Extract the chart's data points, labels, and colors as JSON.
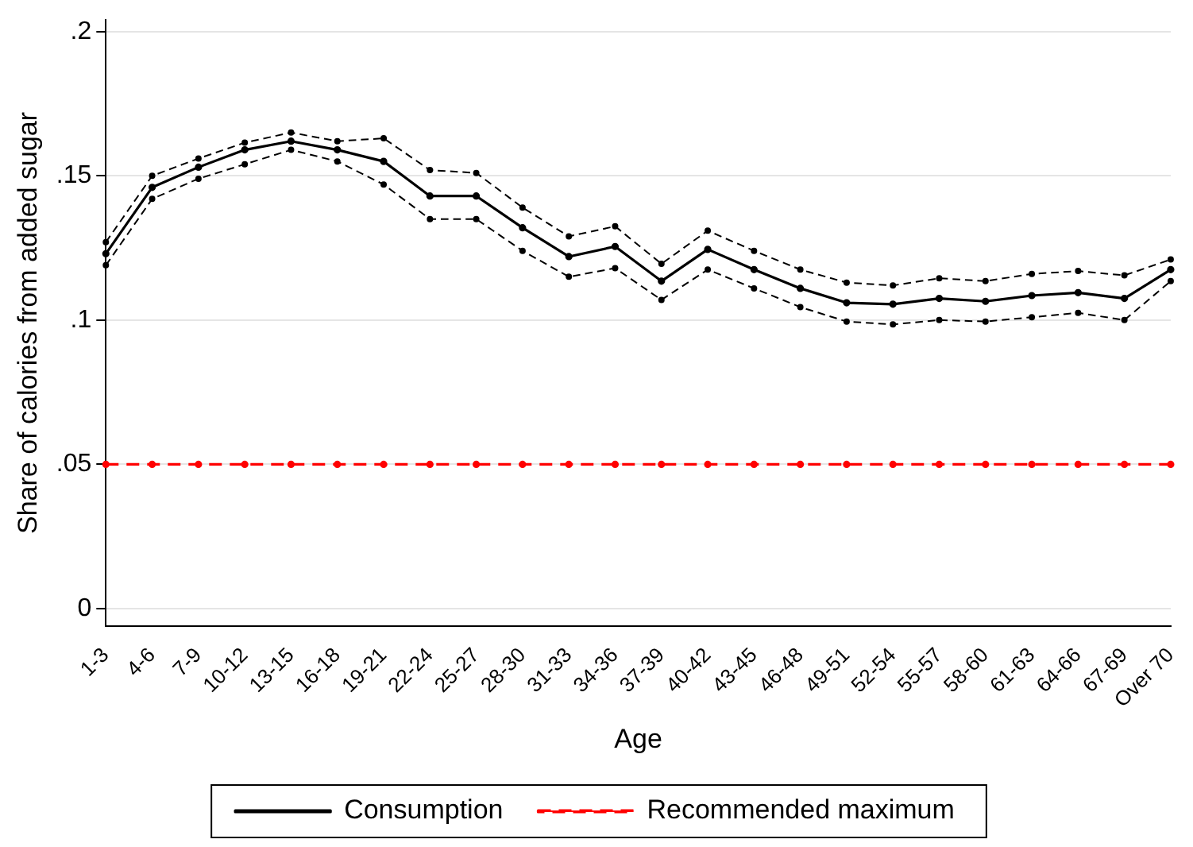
{
  "chart_data": {
    "type": "line",
    "xlabel": "Age",
    "ylabel": "Share of calories from added sugar",
    "categories": [
      "1-3",
      "4-6",
      "7-9",
      "10-12",
      "13-15",
      "16-18",
      "19-21",
      "22-24",
      "25-27",
      "28-30",
      "31-33",
      "34-36",
      "37-39",
      "40-42",
      "43-45",
      "46-48",
      "49-51",
      "52-54",
      "55-57",
      "58-60",
      "61-63",
      "64-66",
      "67-69",
      "Over 70"
    ],
    "series": [
      {
        "name": "Consumption",
        "color": "#000000",
        "line_style": "solid",
        "values": [
          0.123,
          0.146,
          0.153,
          0.159,
          0.162,
          0.159,
          0.155,
          0.143,
          0.143,
          0.132,
          0.122,
          0.1255,
          0.1135,
          0.1245,
          0.1175,
          0.111,
          0.106,
          0.1055,
          0.1075,
          0.1065,
          0.1085,
          0.1095,
          0.1075,
          0.1175
        ]
      },
      {
        "color": "#000000",
        "line_style": "dashed",
        "values": [
          0.119,
          0.142,
          0.149,
          0.154,
          0.159,
          0.155,
          0.147,
          0.135,
          0.135,
          0.124,
          0.115,
          0.118,
          0.107,
          0.1175,
          0.111,
          0.1045,
          0.0995,
          0.0985,
          0.1,
          0.0995,
          0.101,
          0.1025,
          0.1,
          0.1135
        ]
      },
      {
        "color": "#000000",
        "line_style": "dashed",
        "values": [
          0.127,
          0.15,
          0.156,
          0.1615,
          0.165,
          0.162,
          0.163,
          0.152,
          0.151,
          0.139,
          0.129,
          0.1325,
          0.1195,
          0.131,
          0.124,
          0.1175,
          0.113,
          0.112,
          0.1145,
          0.1135,
          0.116,
          0.117,
          0.1155,
          0.121
        ]
      },
      {
        "name": "Recommended maximum",
        "color": "#ff0000",
        "line_style": "dashed",
        "values": [
          0.05,
          0.05,
          0.05,
          0.05,
          0.05,
          0.05,
          0.05,
          0.05,
          0.05,
          0.05,
          0.05,
          0.05,
          0.05,
          0.05,
          0.05,
          0.05,
          0.05,
          0.05,
          0.05,
          0.05,
          0.05,
          0.05,
          0.05,
          0.05
        ]
      }
    ],
    "ylim": [
      -0.006,
      0.204
    ],
    "yticks": [
      0,
      {
        "value": 0.05,
        "label": ".05"
      },
      {
        "value": 0.1,
        "label": ".1"
      },
      {
        "value": 0.15,
        "label": ".15"
      },
      {
        "value": 0.2,
        "label": ".2"
      }
    ],
    "grid": "y",
    "legend": "bottom",
    "marker": "circle"
  }
}
